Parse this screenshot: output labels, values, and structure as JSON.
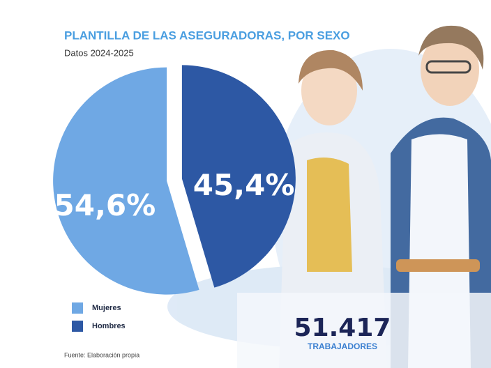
{
  "chart_data": {
    "type": "pie",
    "title": "PLANTILLA DE LAS ASEGURADORAS, POR SEXO",
    "subtitle": "Datos 2024-2025",
    "categories": [
      "Mujeres",
      "Hombres"
    ],
    "values": [
      54.6,
      45.4
    ],
    "value_labels": [
      "54,6%",
      "45,4%"
    ],
    "colors": [
      "#6fa8e4",
      "#2d58a4"
    ],
    "legend": "bottom-left",
    "source": "Fuente: Elaboración propia",
    "total": {
      "number": "51.417",
      "label": "TRABAJADORES"
    }
  }
}
